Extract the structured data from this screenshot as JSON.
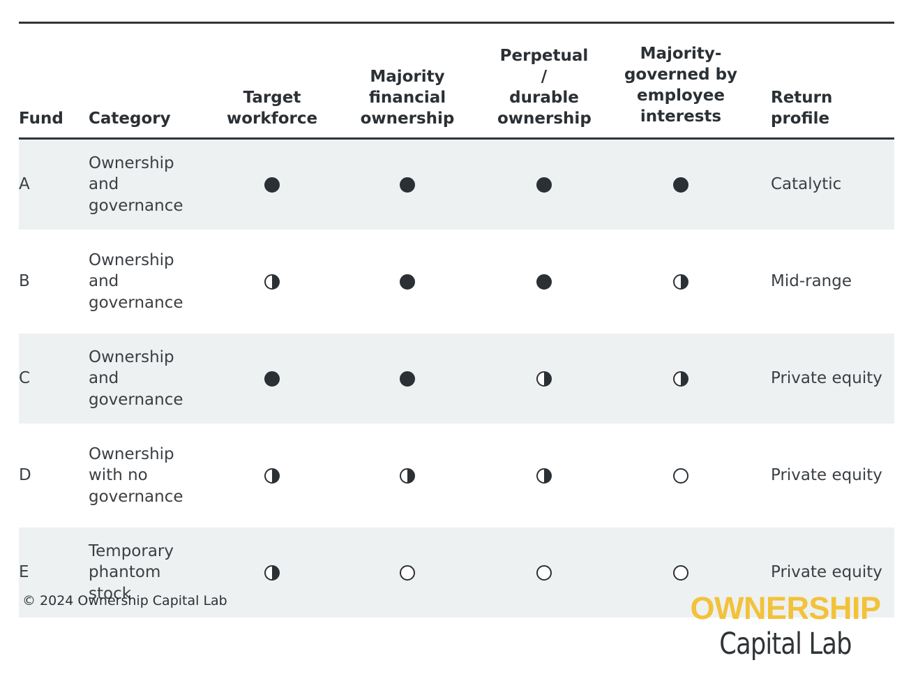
{
  "table": {
    "headers": {
      "fund": "Fund",
      "category": "Category",
      "target_workforce": [
        "Target",
        "workforce"
      ],
      "majority_financial": [
        "Majority",
        "financial",
        "ownership"
      ],
      "perpetual": [
        "Perpetual /",
        "durable",
        "ownership"
      ],
      "majority_governed": [
        "Majority-",
        "governed by",
        "employee",
        "interests"
      ],
      "return_profile": "Return profile"
    },
    "rows": [
      {
        "fund": "A",
        "category": [
          "Ownership",
          "and",
          "governance"
        ],
        "target_workforce": "full",
        "majority_financial": "full",
        "perpetual": "full",
        "majority_governed": "full",
        "return_profile": "Catalytic"
      },
      {
        "fund": "B",
        "category": [
          "Ownership",
          "and",
          "governance"
        ],
        "target_workforce": "half",
        "majority_financial": "full",
        "perpetual": "full",
        "majority_governed": "half",
        "return_profile": "Mid-range"
      },
      {
        "fund": "C",
        "category": [
          "Ownership",
          "and",
          "governance"
        ],
        "target_workforce": "full",
        "majority_financial": "full",
        "perpetual": "half",
        "majority_governed": "half",
        "return_profile": "Private equity"
      },
      {
        "fund": "D",
        "category": [
          "Ownership",
          "with no",
          "governance"
        ],
        "target_workforce": "half",
        "majority_financial": "half",
        "perpetual": "half",
        "majority_governed": "empty",
        "return_profile": "Private equity"
      },
      {
        "fund": "E",
        "category": [
          "Temporary",
          "phantom",
          "stock"
        ],
        "target_workforce": "half",
        "majority_financial": "empty",
        "perpetual": "empty",
        "majority_governed": "empty",
        "return_profile": "Private equity"
      }
    ]
  },
  "footer": {
    "copyright": "© 2024 Ownership Capital Lab",
    "logo_top": "OWNERSHIP",
    "logo_bottom": "Capital Lab"
  },
  "colors": {
    "text": "#2b3034",
    "row_shade": "#eef1f2",
    "logo_accent": "#f2c239"
  }
}
